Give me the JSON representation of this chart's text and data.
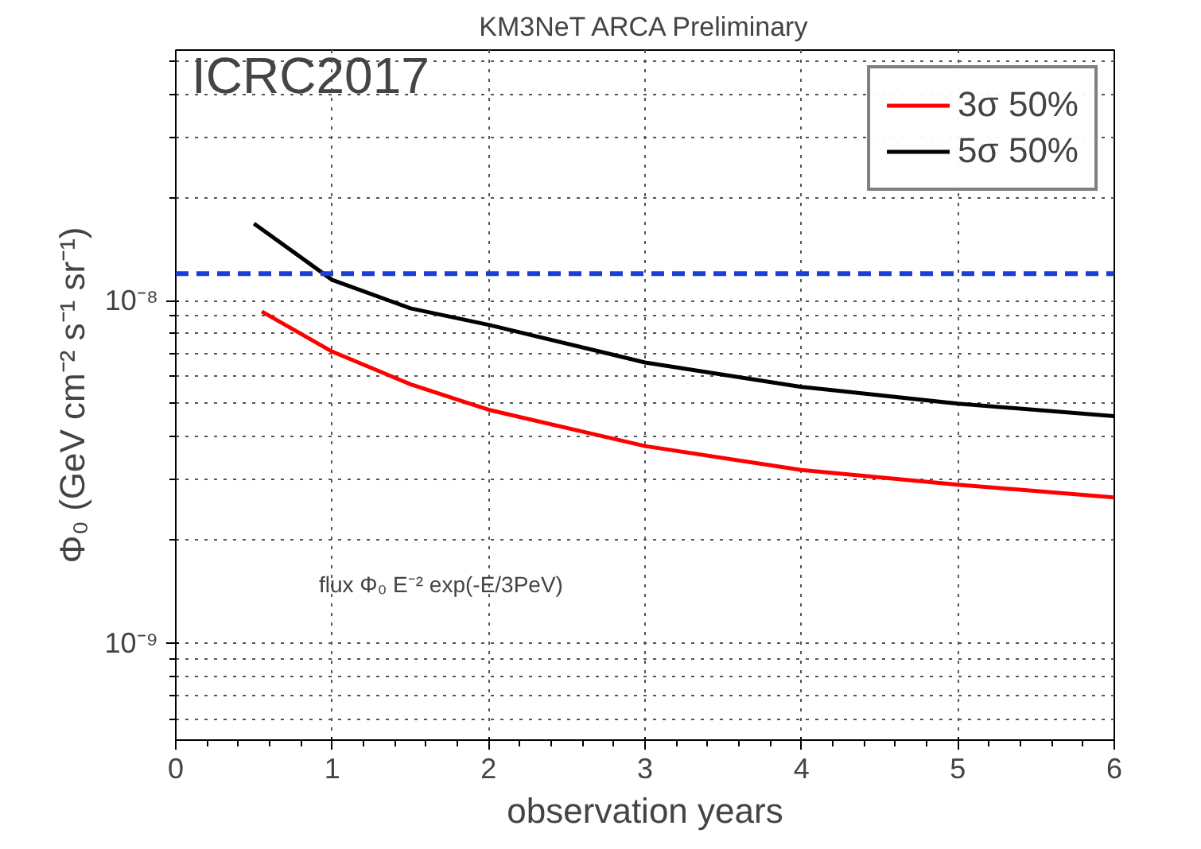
{
  "chart_data": {
    "type": "line",
    "title": "KM3NeT ARCA Preliminary",
    "xlabel": "observation years",
    "ylabel": "Φ₀ (GeV cm⁻² s⁻¹ sr⁻¹)",
    "log": "y",
    "xlim": [
      0,
      6
    ],
    "ylim": [
      5.2e-10,
      5.4e-08
    ],
    "xticks": [
      0,
      1,
      2,
      3,
      4,
      5,
      6
    ],
    "yticks": [
      {
        "value": 1e-09,
        "label": "10⁻⁹"
      },
      {
        "value": 1e-08,
        "label": "10⁻⁸"
      }
    ],
    "grid": true,
    "legend": "top right",
    "line_style": "solid",
    "series": [
      {
        "name": "3σ 50%",
        "color": "#ff0000",
        "x": [
          0.55,
          1,
          1.5,
          2,
          3,
          4,
          5,
          6
        ],
        "values": [
          9.3e-09,
          7.1e-09,
          5.7e-09,
          4.8e-09,
          3.76e-09,
          3.2e-09,
          2.9e-09,
          2.66e-09
        ]
      },
      {
        "name": "5σ 50%",
        "color": "#000000",
        "x": [
          0.5,
          1,
          1.5,
          2,
          3,
          4,
          5,
          6
        ],
        "values": [
          1.68e-08,
          1.15e-08,
          9.5e-09,
          8.5e-09,
          6.6e-09,
          5.6e-09,
          5e-09,
          4.6e-09
        ]
      }
    ],
    "ref_lines": [
      {
        "axis": "y",
        "value": 1.2e-08,
        "color": "#1a3fd6",
        "line_style": "dashed"
      }
    ],
    "annotations": [
      "ICRC2017",
      "flux Φ₀ E⁻² exp(-E/3PeV)"
    ]
  }
}
